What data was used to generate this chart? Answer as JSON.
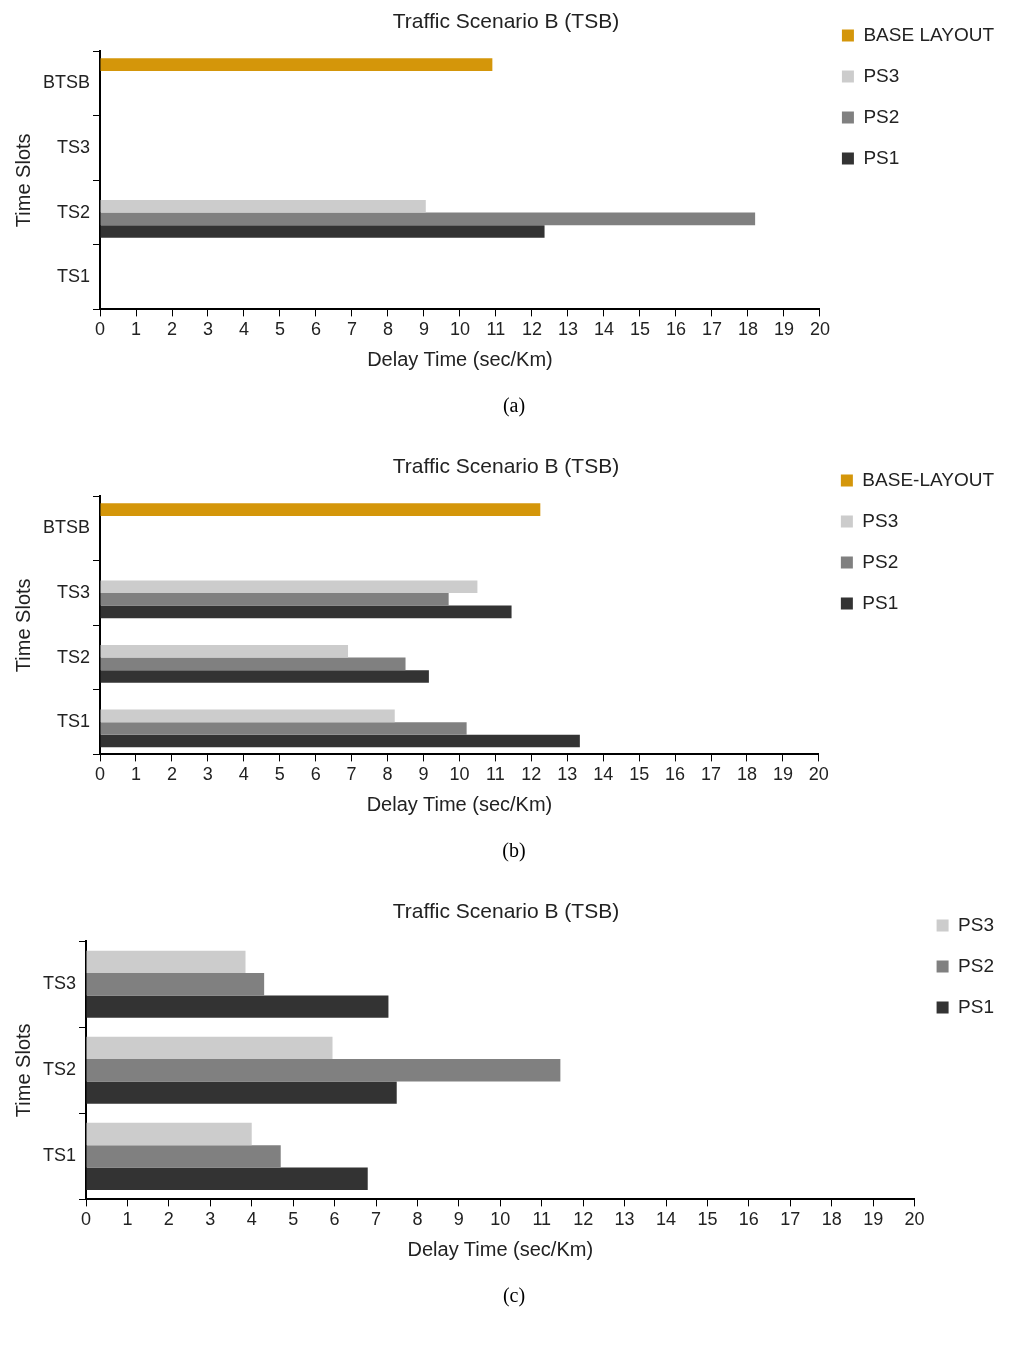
{
  "chart_data": [
    {
      "type": "bar",
      "orientation": "horizontal",
      "title": "Traffic Scenario B (TSB)",
      "xlabel": "Delay Time (sec/Km)",
      "ylabel": "Time Slots",
      "categories": [
        "BTSB",
        "TS3",
        "TS2",
        "TS1"
      ],
      "xlim": [
        0,
        20
      ],
      "xticks": [
        0,
        1,
        2,
        3,
        4,
        5,
        6,
        7,
        8,
        9,
        10,
        11,
        12,
        13,
        14,
        15,
        16,
        17,
        18,
        19,
        20
      ],
      "legend": "top right",
      "grid": false,
      "annotations": [
        "(a)"
      ],
      "series": [
        {
          "name": "BASE LAYOUT",
          "color": "#d4960a",
          "values": [
            10.9,
            null,
            null,
            null
          ]
        },
        {
          "name": "PS3",
          "color": "#cccccc",
          "values": [
            null,
            null,
            9.05,
            null
          ]
        },
        {
          "name": "PS2",
          "color": "#808080",
          "values": [
            null,
            null,
            18.2,
            null
          ]
        },
        {
          "name": "PS1",
          "color": "#333333",
          "values": [
            null,
            null,
            12.35,
            null
          ]
        }
      ]
    },
    {
      "type": "bar",
      "orientation": "horizontal",
      "title": "Traffic Scenario B (TSB)",
      "xlabel": "Delay Time (sec/Km)",
      "ylabel": "Time Slots",
      "categories": [
        "BTSB",
        "TS3",
        "TS2",
        "TS1"
      ],
      "xlim": [
        0,
        20
      ],
      "xticks": [
        0,
        1,
        2,
        3,
        4,
        5,
        6,
        7,
        8,
        9,
        10,
        11,
        12,
        13,
        14,
        15,
        16,
        17,
        18,
        19,
        20
      ],
      "legend": "top right",
      "grid": false,
      "annotations": [
        "(b)"
      ],
      "series": [
        {
          "name": "BASE-LAYOUT",
          "color": "#d4960a",
          "values": [
            12.25,
            null,
            null,
            null
          ]
        },
        {
          "name": "PS3",
          "color": "#cccccc",
          "values": [
            null,
            10.5,
            6.9,
            8.2
          ]
        },
        {
          "name": "PS2",
          "color": "#808080",
          "values": [
            null,
            9.7,
            8.5,
            10.2
          ]
        },
        {
          "name": "PS1",
          "color": "#333333",
          "values": [
            null,
            11.45,
            9.15,
            13.35
          ]
        }
      ]
    },
    {
      "type": "bar",
      "orientation": "horizontal",
      "title": "Traffic Scenario B (TSB)",
      "xlabel": "Delay Time (sec/Km)",
      "ylabel": "Time Slots",
      "categories": [
        "TS3",
        "TS2",
        "TS1"
      ],
      "xlim": [
        0,
        20
      ],
      "xticks": [
        0,
        1,
        2,
        3,
        4,
        5,
        6,
        7,
        8,
        9,
        10,
        11,
        12,
        13,
        14,
        15,
        16,
        17,
        18,
        19,
        20
      ],
      "legend": "top right",
      "grid": false,
      "annotations": [
        "(c)"
      ],
      "series": [
        {
          "name": "PS3",
          "color": "#cccccc",
          "values": [
            3.85,
            5.95,
            4.0
          ]
        },
        {
          "name": "PS2",
          "color": "#808080",
          "values": [
            4.3,
            11.45,
            4.7
          ]
        },
        {
          "name": "PS1",
          "color": "#333333",
          "values": [
            7.3,
            7.5,
            6.8
          ]
        }
      ]
    }
  ]
}
